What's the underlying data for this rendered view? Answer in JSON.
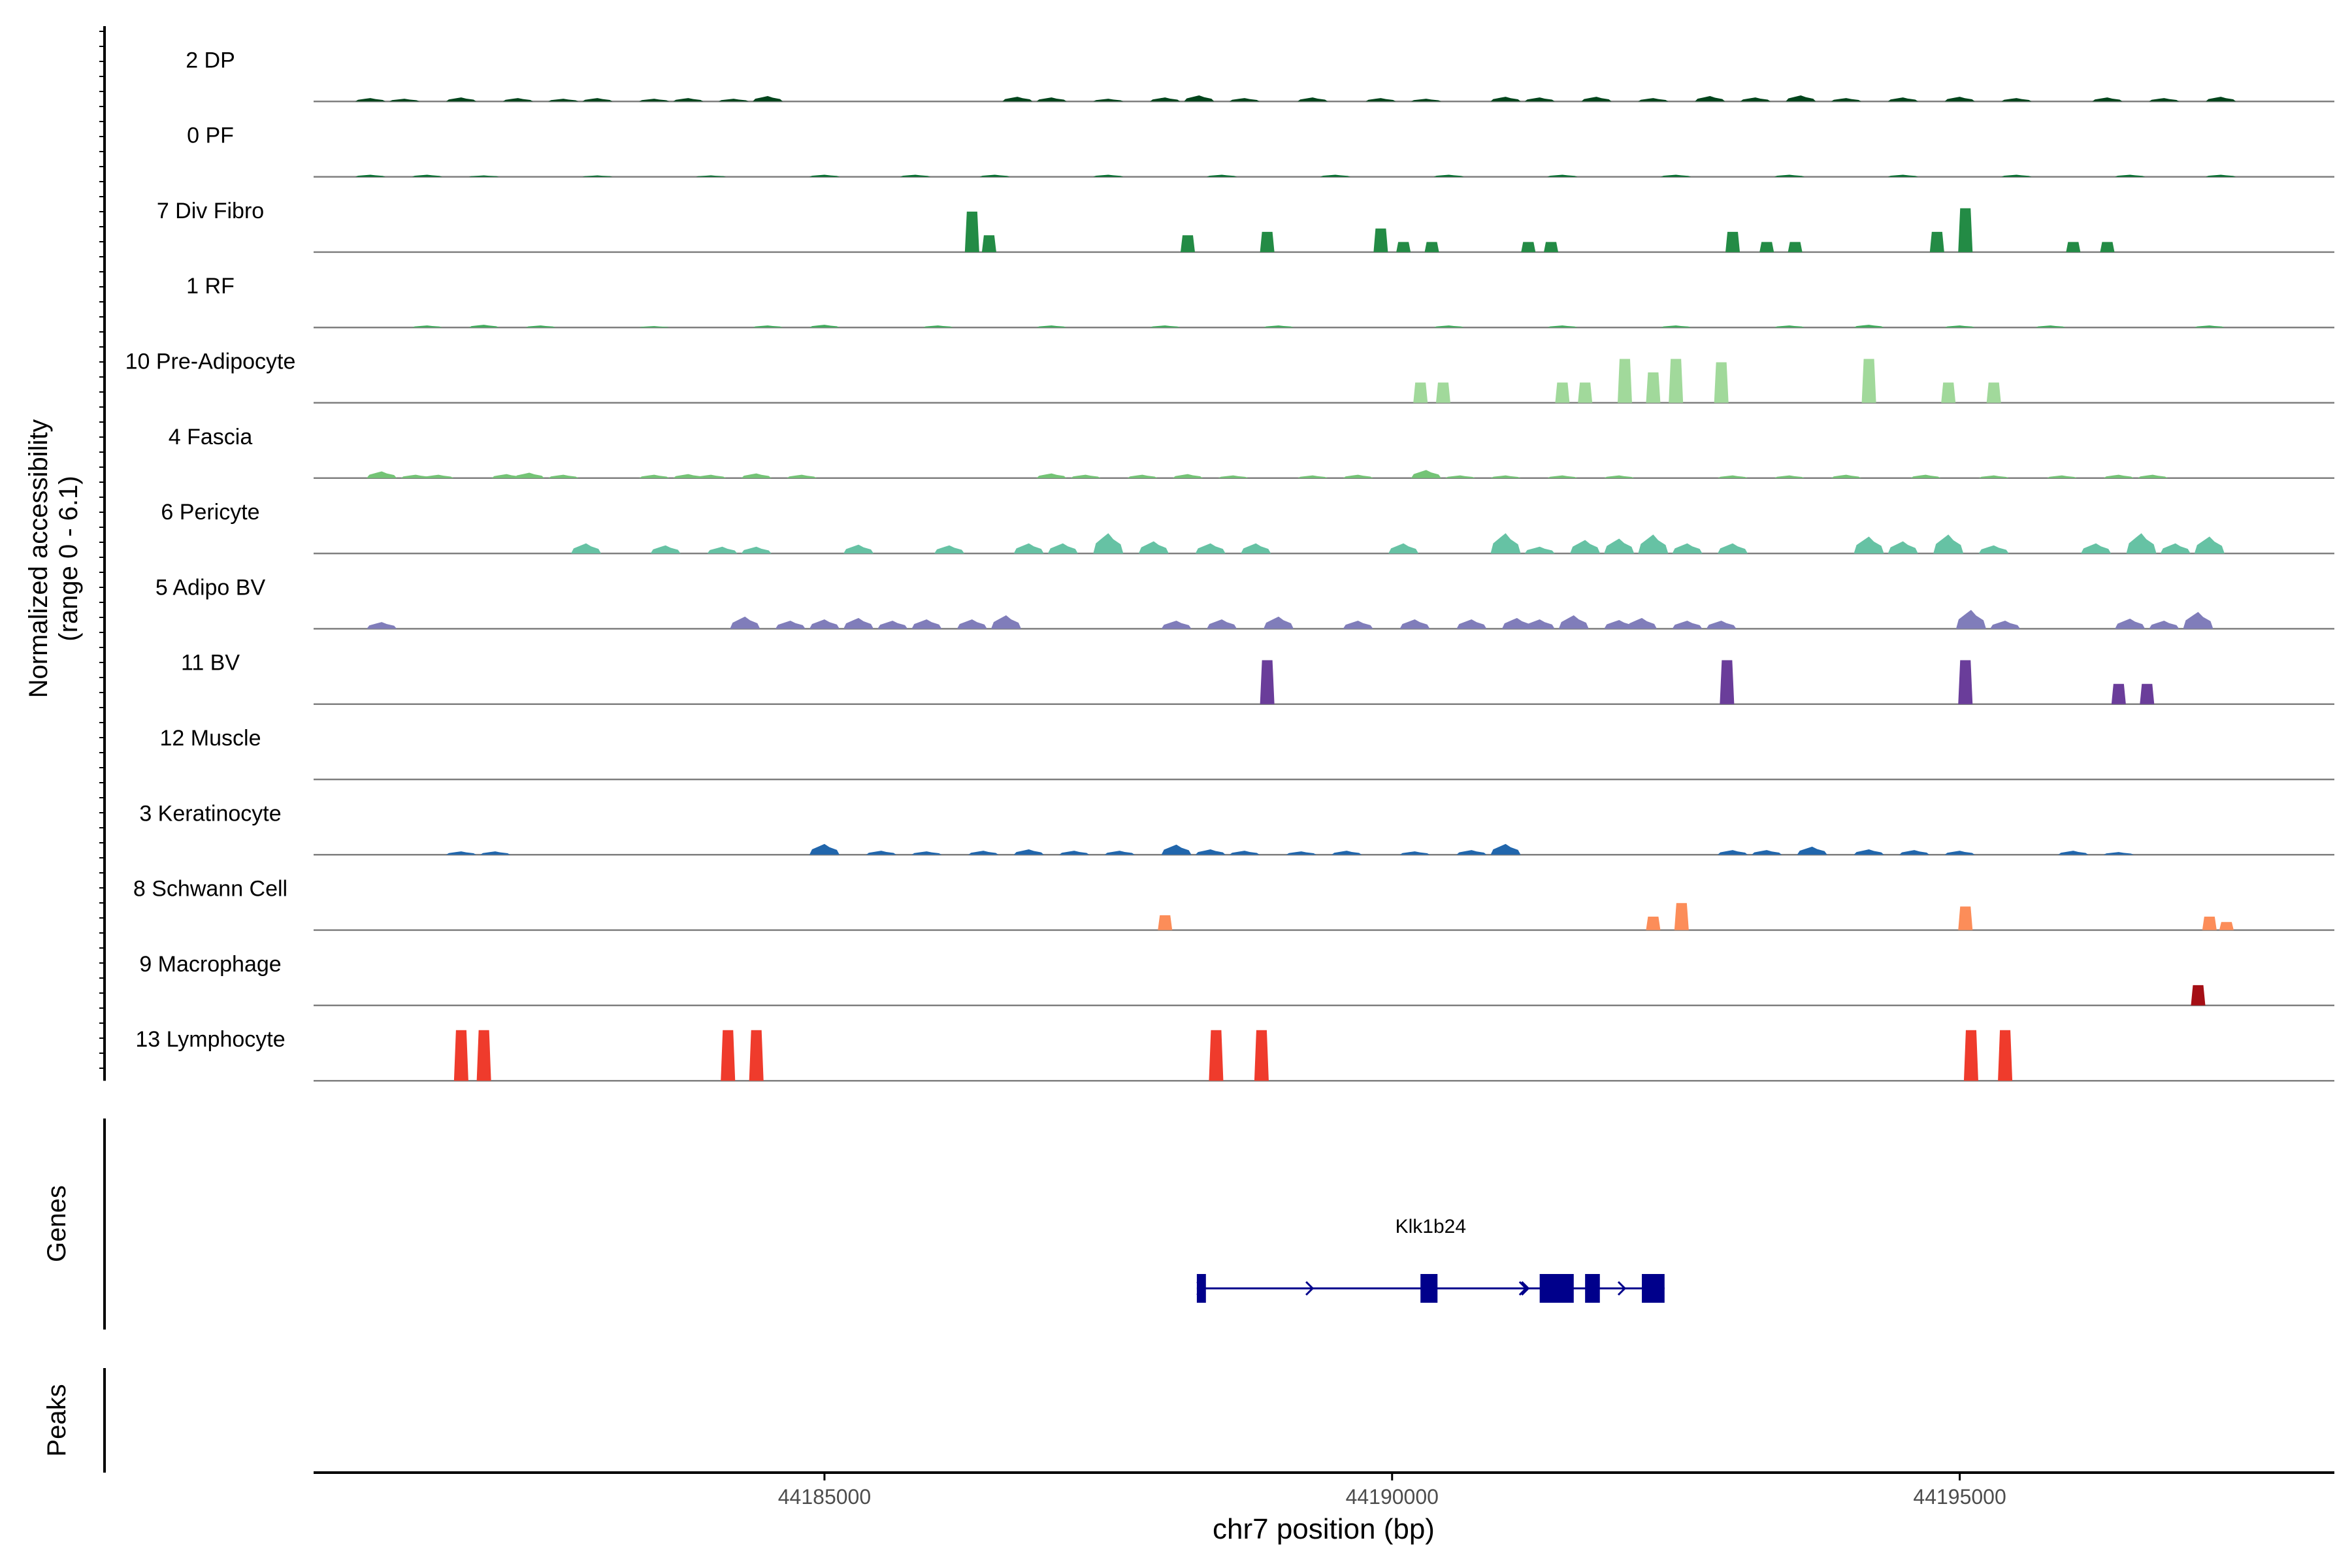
{
  "chart_data": [
    {
      "type": "area",
      "title": "",
      "ylabel_line1": "Normalized accessibility",
      "ylabel_line2": "(range 0 - 6.1)",
      "y_range": [
        0,
        6.1
      ],
      "xlabel": "chr7 position (bp)",
      "x_range": [
        44180500,
        44198300
      ],
      "x_ticks": [
        44185000,
        44190000,
        44195000
      ],
      "x_tick_labels": [
        "44185000",
        "44190000",
        "44195000"
      ],
      "tracks": [
        {
          "name": "2 DP",
          "color": "#00441b",
          "style": "noise",
          "peaks": [
            [
              44181000,
              0.05
            ],
            [
              44181300,
              0.04
            ],
            [
              44181800,
              0.06
            ],
            [
              44182300,
              0.05
            ],
            [
              44182700,
              0.04
            ],
            [
              44183000,
              0.05
            ],
            [
              44183500,
              0.04
            ],
            [
              44183800,
              0.05
            ],
            [
              44184200,
              0.04
            ],
            [
              44184500,
              0.08
            ],
            [
              44186700,
              0.07
            ],
            [
              44187000,
              0.06
            ],
            [
              44187500,
              0.04
            ],
            [
              44188000,
              0.06
            ],
            [
              44188300,
              0.09
            ],
            [
              44188700,
              0.05
            ],
            [
              44189300,
              0.06
            ],
            [
              44189900,
              0.05
            ],
            [
              44190300,
              0.04
            ],
            [
              44191000,
              0.07
            ],
            [
              44191300,
              0.06
            ],
            [
              44191800,
              0.07
            ],
            [
              44192300,
              0.05
            ],
            [
              44192800,
              0.08
            ],
            [
              44193200,
              0.06
            ],
            [
              44193600,
              0.09
            ],
            [
              44194000,
              0.05
            ],
            [
              44194500,
              0.06
            ],
            [
              44195000,
              0.07
            ],
            [
              44195500,
              0.05
            ],
            [
              44196300,
              0.06
            ],
            [
              44196800,
              0.05
            ],
            [
              44197300,
              0.07
            ]
          ]
        },
        {
          "name": "0 PF",
          "color": "#006d2c",
          "style": "noise",
          "peaks": [
            [
              44181000,
              0.03
            ],
            [
              44181500,
              0.03
            ],
            [
              44182000,
              0.02
            ],
            [
              44183000,
              0.02
            ],
            [
              44184000,
              0.02
            ],
            [
              44185000,
              0.03
            ],
            [
              44185800,
              0.03
            ],
            [
              44186500,
              0.03
            ],
            [
              44187500,
              0.03
            ],
            [
              44188500,
              0.03
            ],
            [
              44189500,
              0.03
            ],
            [
              44190500,
              0.03
            ],
            [
              44191500,
              0.03
            ],
            [
              44192500,
              0.03
            ],
            [
              44193500,
              0.03
            ],
            [
              44194500,
              0.03
            ],
            [
              44195500,
              0.03
            ],
            [
              44196500,
              0.03
            ],
            [
              44197300,
              0.03
            ]
          ]
        },
        {
          "name": "7 Div Fibro",
          "color": "#238b45",
          "style": "blocks",
          "peaks": [
            [
              44186300,
              0.6
            ],
            [
              44186450,
              0.25
            ],
            [
              44188200,
              0.25
            ],
            [
              44188900,
              0.3
            ],
            [
              44189900,
              0.35
            ],
            [
              44190100,
              0.15
            ],
            [
              44190350,
              0.15
            ],
            [
              44191200,
              0.15
            ],
            [
              44191400,
              0.15
            ],
            [
              44193000,
              0.3
            ],
            [
              44193300,
              0.15
            ],
            [
              44193550,
              0.15
            ],
            [
              44194800,
              0.3
            ],
            [
              44195050,
              0.65
            ],
            [
              44196000,
              0.15
            ],
            [
              44196300,
              0.15
            ]
          ]
        },
        {
          "name": "1 RF",
          "color": "#41ab5d",
          "style": "noise",
          "peaks": [
            [
              44181500,
              0.03
            ],
            [
              44182000,
              0.04
            ],
            [
              44182500,
              0.03
            ],
            [
              44183500,
              0.02
            ],
            [
              44184500,
              0.03
            ],
            [
              44185000,
              0.04
            ],
            [
              44186000,
              0.03
            ],
            [
              44187000,
              0.03
            ],
            [
              44188000,
              0.03
            ],
            [
              44189000,
              0.03
            ],
            [
              44190500,
              0.03
            ],
            [
              44191500,
              0.03
            ],
            [
              44192500,
              0.03
            ],
            [
              44193500,
              0.03
            ],
            [
              44194200,
              0.04
            ],
            [
              44195000,
              0.03
            ],
            [
              44195800,
              0.03
            ],
            [
              44197200,
              0.03
            ]
          ]
        },
        {
          "name": "10 Pre-Adipocyte",
          "color": "#a1d99b",
          "style": "blocks",
          "peaks": [
            [
              44190250,
              0.3
            ],
            [
              44190450,
              0.3
            ],
            [
              44191500,
              0.3
            ],
            [
              44191700,
              0.3
            ],
            [
              44192050,
              0.65
            ],
            [
              44192300,
              0.45
            ],
            [
              44192500,
              0.65
            ],
            [
              44192900,
              0.6
            ],
            [
              44194200,
              0.65
            ],
            [
              44194900,
              0.3
            ],
            [
              44195300,
              0.3
            ]
          ]
        },
        {
          "name": "4 Fascia",
          "color": "#74c476",
          "style": "noise",
          "peaks": [
            [
              44181100,
              0.1
            ],
            [
              44181400,
              0.05
            ],
            [
              44181600,
              0.05
            ],
            [
              44182200,
              0.06
            ],
            [
              44182400,
              0.08
            ],
            [
              44182700,
              0.05
            ],
            [
              44183500,
              0.05
            ],
            [
              44183800,
              0.06
            ],
            [
              44184000,
              0.05
            ],
            [
              44184400,
              0.07
            ],
            [
              44184800,
              0.05
            ],
            [
              44187000,
              0.07
            ],
            [
              44187300,
              0.05
            ],
            [
              44187800,
              0.05
            ],
            [
              44188200,
              0.06
            ],
            [
              44188600,
              0.04
            ],
            [
              44189300,
              0.04
            ],
            [
              44189700,
              0.05
            ],
            [
              44190300,
              0.12
            ],
            [
              44190600,
              0.04
            ],
            [
              44191000,
              0.04
            ],
            [
              44191500,
              0.04
            ],
            [
              44192000,
              0.04
            ],
            [
              44193000,
              0.04
            ],
            [
              44193500,
              0.04
            ],
            [
              44194000,
              0.05
            ],
            [
              44194700,
              0.05
            ],
            [
              44195300,
              0.04
            ],
            [
              44195900,
              0.04
            ],
            [
              44196400,
              0.05
            ],
            [
              44196700,
              0.05
            ]
          ]
        },
        {
          "name": "6 Pericyte",
          "color": "#66c2a4",
          "style": "noise",
          "peaks": [
            [
              44182900,
              0.15
            ],
            [
              44183600,
              0.12
            ],
            [
              44184100,
              0.1
            ],
            [
              44184400,
              0.1
            ],
            [
              44185300,
              0.13
            ],
            [
              44186100,
              0.12
            ],
            [
              44186800,
              0.15
            ],
            [
              44187100,
              0.15
            ],
            [
              44187500,
              0.3
            ],
            [
              44187900,
              0.18
            ],
            [
              44188400,
              0.15
            ],
            [
              44188800,
              0.15
            ],
            [
              44190100,
              0.15
            ],
            [
              44191000,
              0.3
            ],
            [
              44191300,
              0.1
            ],
            [
              44191700,
              0.2
            ],
            [
              44192000,
              0.22
            ],
            [
              44192300,
              0.28
            ],
            [
              44192600,
              0.15
            ],
            [
              44193000,
              0.15
            ],
            [
              44194200,
              0.25
            ],
            [
              44194500,
              0.18
            ],
            [
              44194900,
              0.28
            ],
            [
              44195300,
              0.12
            ],
            [
              44196200,
              0.15
            ],
            [
              44196600,
              0.3
            ],
            [
              44196900,
              0.15
            ],
            [
              44197200,
              0.25
            ]
          ]
        },
        {
          "name": "5 Adipo BV",
          "color": "#807dba",
          "style": "noise",
          "peaks": [
            [
              44181100,
              0.1
            ],
            [
              44184300,
              0.18
            ],
            [
              44184700,
              0.12
            ],
            [
              44185000,
              0.14
            ],
            [
              44185300,
              0.16
            ],
            [
              44185600,
              0.12
            ],
            [
              44185900,
              0.14
            ],
            [
              44186300,
              0.14
            ],
            [
              44186600,
              0.2
            ],
            [
              44188100,
              0.12
            ],
            [
              44188500,
              0.14
            ],
            [
              44189000,
              0.18
            ],
            [
              44189700,
              0.12
            ],
            [
              44190200,
              0.14
            ],
            [
              44190700,
              0.14
            ],
            [
              44191100,
              0.16
            ],
            [
              44191300,
              0.14
            ],
            [
              44191600,
              0.2
            ],
            [
              44192000,
              0.13
            ],
            [
              44192200,
              0.16
            ],
            [
              44192600,
              0.12
            ],
            [
              44192900,
              0.12
            ],
            [
              44195100,
              0.28
            ],
            [
              44195400,
              0.12
            ],
            [
              44196500,
              0.15
            ],
            [
              44196800,
              0.12
            ],
            [
              44197100,
              0.25
            ]
          ]
        },
        {
          "name": "11 BV",
          "color": "#6a3d9a",
          "style": "blocks",
          "peaks": [
            [
              44188900,
              0.65
            ],
            [
              44192950,
              0.65
            ],
            [
              44195050,
              0.65
            ],
            [
              44196400,
              0.3
            ],
            [
              44196650,
              0.3
            ]
          ]
        },
        {
          "name": "12 Muscle",
          "color": "#54278f",
          "style": "blocks",
          "peaks": []
        },
        {
          "name": "3 Keratinocyte",
          "color": "#2166ac",
          "style": "noise",
          "peaks": [
            [
              44181800,
              0.05
            ],
            [
              44182100,
              0.05
            ],
            [
              44185000,
              0.16
            ],
            [
              44185500,
              0.06
            ],
            [
              44185900,
              0.05
            ],
            [
              44186400,
              0.06
            ],
            [
              44186800,
              0.08
            ],
            [
              44187200,
              0.06
            ],
            [
              44187600,
              0.06
            ],
            [
              44188100,
              0.15
            ],
            [
              44188400,
              0.08
            ],
            [
              44188700,
              0.06
            ],
            [
              44189200,
              0.05
            ],
            [
              44189600,
              0.06
            ],
            [
              44190200,
              0.05
            ],
            [
              44190700,
              0.07
            ],
            [
              44191000,
              0.16
            ],
            [
              44193000,
              0.07
            ],
            [
              44193300,
              0.07
            ],
            [
              44193700,
              0.12
            ],
            [
              44194200,
              0.08
            ],
            [
              44194600,
              0.07
            ],
            [
              44195000,
              0.06
            ],
            [
              44196000,
              0.06
            ],
            [
              44196400,
              0.04
            ]
          ]
        },
        {
          "name": "8 Schwann Cell",
          "color": "#fc8d59",
          "style": "blocks",
          "peaks": [
            [
              44188000,
              0.22
            ],
            [
              44192300,
              0.2
            ],
            [
              44192550,
              0.4
            ],
            [
              44195050,
              0.35
            ],
            [
              44197200,
              0.2
            ],
            [
              44197350,
              0.12
            ]
          ]
        },
        {
          "name": "9 Macrophage",
          "color": "#a50f15",
          "style": "blocks",
          "peaks": [
            [
              44197100,
              0.3
            ]
          ]
        },
        {
          "name": "13 Lymphocyte",
          "color": "#ef3b2c",
          "style": "blocks",
          "peaks": [
            [
              44181800,
              0.75
            ],
            [
              44182000,
              0.75
            ],
            [
              44184150,
              0.75
            ],
            [
              44184400,
              0.75
            ],
            [
              44188450,
              0.75
            ],
            [
              44188850,
              0.75
            ],
            [
              44195100,
              0.75
            ],
            [
              44195400,
              0.75
            ]
          ]
        }
      ],
      "genes_label": "Genes",
      "gene": {
        "name": "Klk1b24",
        "start": 44188280,
        "end": 44192400,
        "strand": "+",
        "exons": [
          [
            44188280,
            44188360
          ],
          [
            44190250,
            44190400
          ],
          [
            44191300,
            44191600
          ],
          [
            44191700,
            44191830
          ],
          [
            44192200,
            44192400
          ]
        ],
        "color": "#00008b"
      },
      "peaks_label": "Peaks"
    }
  ]
}
